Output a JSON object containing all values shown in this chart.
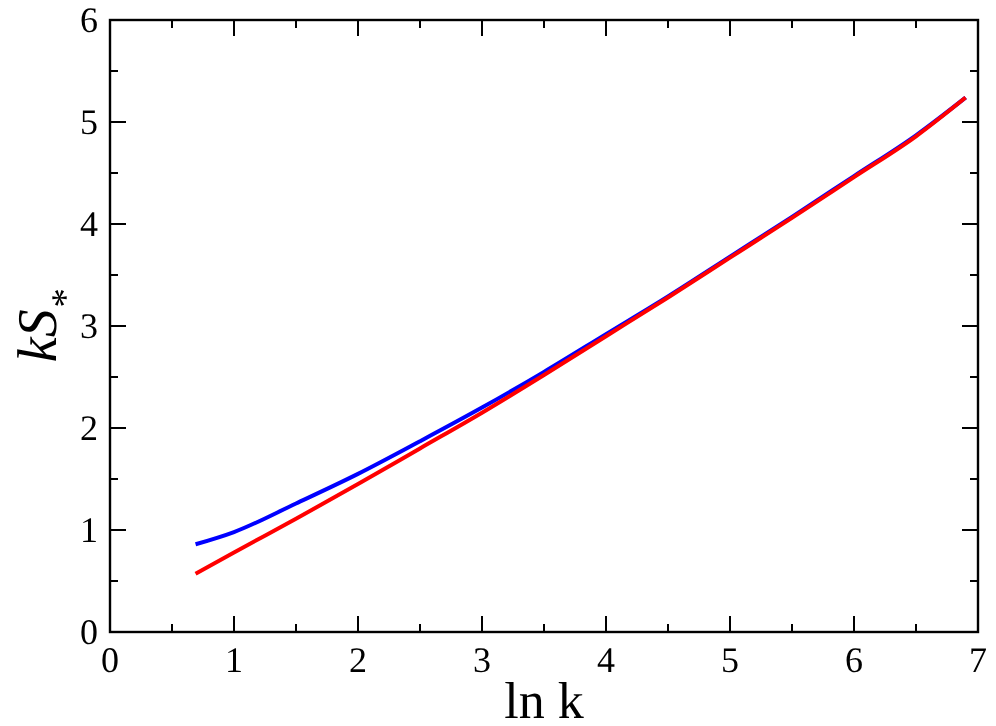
{
  "chart_data": {
    "type": "line",
    "xlabel": "ln k",
    "ylabel": "kS$_{*}$",
    "xlim": [
      0,
      7
    ],
    "ylim": [
      0,
      6
    ],
    "xticks": [
      0,
      {
        "value": 0.5,
        "label": null
      },
      1,
      {
        "value": 1.5,
        "label": null
      },
      2,
      {
        "value": 2.5,
        "label": null
      },
      3,
      {
        "value": 3.5,
        "label": null
      },
      4,
      {
        "value": 4.5,
        "label": null
      },
      5,
      {
        "value": 5.5,
        "label": null
      },
      6,
      {
        "value": 6.5,
        "label": null
      },
      7
    ],
    "yticks": [
      0,
      {
        "value": 0.5,
        "label": null
      },
      1,
      {
        "value": 1.5,
        "label": null
      },
      2,
      {
        "value": 2.5,
        "label": null
      },
      3,
      {
        "value": 3.5,
        "label": null
      },
      4,
      {
        "value": 4.5,
        "label": null
      },
      5,
      {
        "value": 5.5,
        "label": null
      },
      6
    ],
    "grid": false,
    "line_style": "solid",
    "series": [
      {
        "color": "#0000ff",
        "x": [
          0.69,
          1,
          1.5,
          2,
          2.5,
          3,
          3.5,
          4,
          4.5,
          5,
          5.5,
          6,
          6.5,
          6.9
        ],
        "values": [
          0.86,
          0.98,
          1.26,
          1.55,
          1.87,
          2.2,
          2.55,
          2.92,
          3.29,
          3.68,
          4.07,
          4.47,
          4.87,
          5.24
        ]
      },
      {
        "color": "#ff0000",
        "x": [
          0.69,
          1,
          1.5,
          2,
          2.5,
          3,
          3.5,
          4,
          4.5,
          5,
          5.5,
          6,
          6.5,
          6.9
        ],
        "values": [
          0.57,
          0.78,
          1.11,
          1.45,
          1.8,
          2.15,
          2.52,
          2.9,
          3.28,
          3.67,
          4.06,
          4.46,
          4.86,
          5.24
        ]
      }
    ]
  }
}
